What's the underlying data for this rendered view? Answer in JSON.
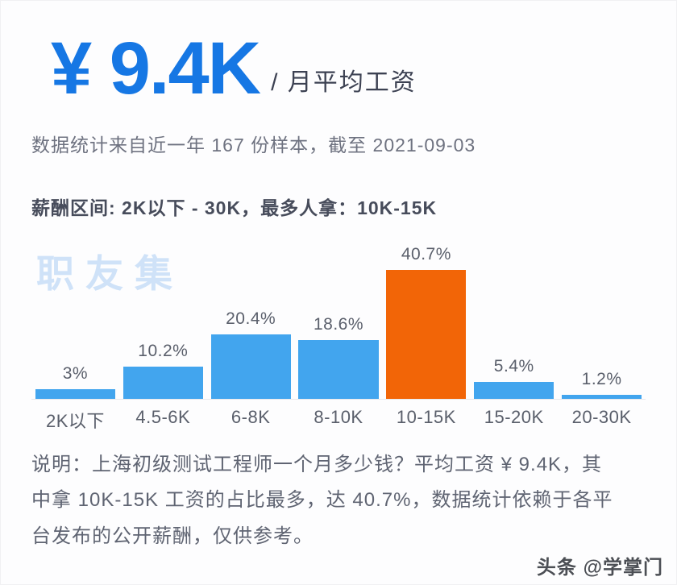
{
  "header": {
    "salary": "¥ 9.4K",
    "salary_suffix": "/ 月平均工资",
    "sample_note": "数据统计来自近一年 167 份样本，截至 2021-09-03",
    "range_note": "薪酬区间: 2K以下 - 30K，最多人拿：10K-15K"
  },
  "watermark": "职友集",
  "chart_data": {
    "type": "bar",
    "categories": [
      "2K以下",
      "4.5-6K",
      "6-8K",
      "8-10K",
      "10-15K",
      "15-20K",
      "20-30K"
    ],
    "values": [
      3,
      10.2,
      20.4,
      18.6,
      40.7,
      5.4,
      1.2
    ],
    "value_labels": [
      "3%",
      "10.2%",
      "20.4%",
      "18.6%",
      "40.7%",
      "5.4%",
      "1.2%"
    ],
    "title": "",
    "xlabel": "",
    "ylabel": "",
    "ylim": [
      0,
      45
    ],
    "grid": false,
    "legend": "none",
    "highlight_index": 4,
    "bar_color": "#42a5ee",
    "highlight_color": "#f26507"
  },
  "footer": {
    "description": "说明：上海初级测试工程师一个月多少钱？平均工资 ¥ 9.4K，其中拿 10K-15K 工资的占比最多，达 40.7%，数据统计依赖于各平台发布的公开薪酬，仅供参考。",
    "credit": "头条 @学掌门"
  },
  "colors": {
    "accent_blue": "#1677e4",
    "bar_blue": "#42a5ee",
    "bar_orange": "#f26507",
    "watermark_blue": "#cfe2f8"
  }
}
